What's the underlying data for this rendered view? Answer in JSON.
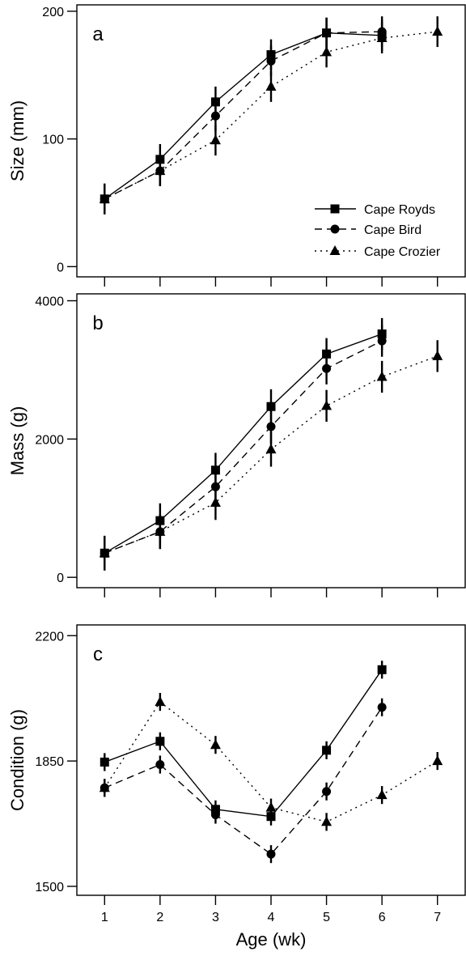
{
  "chart_data": [
    {
      "type": "line",
      "panel_label": "a",
      "ylabel": "Size (mm)",
      "xlabel": "",
      "xlim": [
        0.5,
        7.5
      ],
      "ylim": [
        -8,
        205
      ],
      "yticks": [
        0,
        100,
        200
      ],
      "xticks": [
        1,
        2,
        3,
        4,
        5,
        6,
        7
      ],
      "grid": false,
      "legend": {
        "placement": "bottom-right",
        "entries": [
          "Cape Royds",
          "Cape Bird",
          "Cape Crozier"
        ]
      },
      "series": [
        {
          "name": "Cape Royds",
          "marker": "square",
          "dash": "solid",
          "x": [
            1,
            2,
            3,
            4,
            5,
            6
          ],
          "y": [
            53,
            84,
            129,
            166,
            183,
            181
          ],
          "err": [
            12,
            12,
            12,
            12,
            12,
            12
          ]
        },
        {
          "name": "Cape Bird",
          "marker": "circle",
          "dash": "dashed",
          "x": [
            1,
            2,
            3,
            4,
            5,
            6
          ],
          "y": [
            53,
            75,
            118,
            161,
            183,
            184
          ],
          "err": [
            12,
            12,
            12,
            12,
            12,
            12
          ]
        },
        {
          "name": "Cape Crozier",
          "marker": "triangle",
          "dash": "dotted",
          "x": [
            1,
            2,
            3,
            4,
            5,
            6,
            7
          ],
          "y": [
            53,
            75,
            99,
            141,
            168,
            179,
            184
          ],
          "err": [
            12,
            12,
            12,
            12,
            12,
            12,
            12
          ]
        }
      ]
    },
    {
      "type": "line",
      "panel_label": "b",
      "ylabel": "Mass (g)",
      "xlabel": "",
      "xlim": [
        0.5,
        7.5
      ],
      "ylim": [
        -150,
        4100
      ],
      "yticks": [
        0,
        2000,
        4000
      ],
      "xticks": [
        1,
        2,
        3,
        4,
        5,
        6,
        7
      ],
      "grid": false,
      "series": [
        {
          "name": "Cape Royds",
          "marker": "square",
          "dash": "solid",
          "x": [
            1,
            2,
            3,
            4,
            5,
            6
          ],
          "y": [
            350,
            820,
            1550,
            2470,
            3230,
            3520
          ],
          "err": [
            250,
            250,
            250,
            250,
            230,
            230
          ]
        },
        {
          "name": "Cape Bird",
          "marker": "circle",
          "dash": "dashed",
          "x": [
            1,
            2,
            3,
            4,
            5,
            6
          ],
          "y": [
            350,
            660,
            1310,
            2180,
            3020,
            3420
          ],
          "err": [
            250,
            250,
            250,
            250,
            230,
            230
          ]
        },
        {
          "name": "Cape Crozier",
          "marker": "triangle",
          "dash": "dotted",
          "x": [
            1,
            2,
            3,
            4,
            5,
            6,
            7
          ],
          "y": [
            350,
            660,
            1080,
            1850,
            2480,
            2900,
            3200
          ],
          "err": [
            250,
            250,
            250,
            250,
            230,
            230,
            230
          ]
        }
      ]
    },
    {
      "type": "line",
      "panel_label": "c",
      "ylabel": "Condition (g)",
      "xlabel": "Age (wk)",
      "xlim": [
        0.5,
        7.5
      ],
      "ylim": [
        1475,
        2230
      ],
      "yticks": [
        1500,
        1850,
        2200
      ],
      "xticks": [
        1,
        2,
        3,
        4,
        5,
        6,
        7
      ],
      "grid": false,
      "series": [
        {
          "name": "Cape Royds",
          "marker": "square",
          "dash": "solid",
          "x": [
            1,
            2,
            3,
            4,
            5,
            6
          ],
          "y": [
            1847,
            1905,
            1715,
            1695,
            1880,
            2105
          ],
          "err": [
            25,
            25,
            25,
            25,
            25,
            25
          ]
        },
        {
          "name": "Cape Bird",
          "marker": "circle",
          "dash": "dashed",
          "x": [
            1,
            2,
            3,
            4,
            5,
            6
          ],
          "y": [
            1775,
            1840,
            1700,
            1590,
            1765,
            2000
          ],
          "err": [
            25,
            25,
            25,
            25,
            25,
            25
          ]
        },
        {
          "name": "Cape Crozier",
          "marker": "triangle",
          "dash": "dotted",
          "x": [
            1,
            2,
            3,
            4,
            5,
            6,
            7
          ],
          "y": [
            1775,
            2015,
            1895,
            1720,
            1680,
            1755,
            1850
          ],
          "err": [
            25,
            25,
            25,
            25,
            25,
            25,
            25
          ]
        }
      ]
    }
  ]
}
